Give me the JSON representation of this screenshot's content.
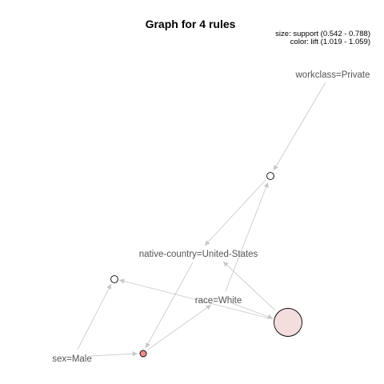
{
  "title": "Graph for 4 rules",
  "legend": {
    "size_text": "size: support (0.542 - 0.788)",
    "color_text": "color: lift (1.019 - 1.059)"
  },
  "items": [
    {
      "id": "workclass",
      "label": "workclass=Private"
    },
    {
      "id": "native",
      "label": "native-country=United-States"
    },
    {
      "id": "race",
      "label": "race=White"
    },
    {
      "id": "sex",
      "label": "sex=Male"
    }
  ],
  "rules": [
    {
      "id": "r1",
      "support": 0.55,
      "lift": 1.019,
      "color": "#ffffff"
    },
    {
      "id": "r2",
      "support": 0.55,
      "lift": 1.019,
      "color": "#ffffff"
    },
    {
      "id": "r3",
      "support": 0.788,
      "lift": 1.03,
      "color": "#f3dedd"
    },
    {
      "id": "r4",
      "support": 0.542,
      "lift": 1.059,
      "color": "#ef8f8c"
    }
  ],
  "edges": [
    {
      "from": "workclass",
      "to": "r1"
    },
    {
      "from": "r1",
      "to": "native"
    },
    {
      "from": "race",
      "to": "r1"
    },
    {
      "from": "native",
      "to": "r4"
    },
    {
      "from": "race",
      "to": "r3"
    },
    {
      "from": "r3",
      "to": "native"
    },
    {
      "from": "r3",
      "to": "r2"
    },
    {
      "from": "sex",
      "to": "r2"
    },
    {
      "from": "sex",
      "to": "r4"
    },
    {
      "from": "r4",
      "to": "race"
    }
  ]
}
